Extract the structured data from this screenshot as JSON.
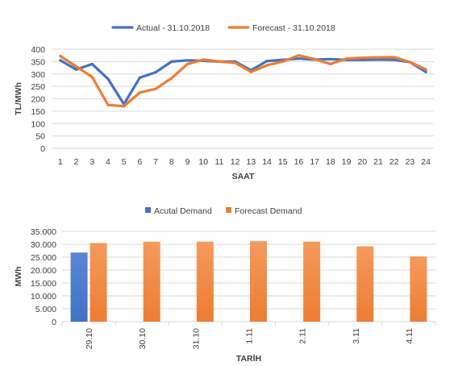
{
  "chart_data": [
    {
      "type": "line",
      "title": "",
      "xlabel": "SAAT",
      "ylabel": "TL/MWh",
      "ylim": [
        0,
        400
      ],
      "yticks": [
        "0",
        "50",
        "100",
        "150",
        "200",
        "250",
        "300",
        "350",
        "400"
      ],
      "ytick_values": [
        0,
        50,
        100,
        150,
        200,
        250,
        300,
        350,
        400
      ],
      "categories": [
        "1",
        "2",
        "3",
        "4",
        "5",
        "6",
        "7",
        "8",
        "9",
        "10",
        "11",
        "12",
        "13",
        "14",
        "15",
        "16",
        "17",
        "18",
        "19",
        "20",
        "21",
        "22",
        "23",
        "24"
      ],
      "grid": true,
      "legend": "top",
      "series": [
        {
          "name": "Actual - 31.10.2018",
          "color": "#4472C4",
          "values": [
            355,
            318,
            340,
            280,
            178,
            285,
            307,
            350,
            355,
            353,
            350,
            350,
            315,
            352,
            357,
            362,
            358,
            360,
            357,
            357,
            358,
            357,
            348,
            308
          ]
        },
        {
          "name": "Forecast - 31.10.2018",
          "color": "#ED7D31",
          "values": [
            372,
            330,
            288,
            175,
            170,
            225,
            240,
            283,
            340,
            358,
            350,
            345,
            308,
            335,
            350,
            375,
            360,
            340,
            362,
            365,
            367,
            368,
            348,
            318
          ]
        }
      ]
    },
    {
      "type": "bar",
      "title": "",
      "xlabel": "TARİH",
      "ylabel": "MWh",
      "ylim": [
        0,
        35000
      ],
      "yticks": [
        "0",
        "5.000",
        "10.000",
        "15.000",
        "20.000",
        "25.000",
        "30.000",
        "35.000"
      ],
      "ytick_values": [
        0,
        5000,
        10000,
        15000,
        20000,
        25000,
        30000,
        35000
      ],
      "categories": [
        "29.10",
        "30.10",
        "31.10",
        "1.11",
        "2.11",
        "3.11",
        "4.11"
      ],
      "grid": true,
      "legend": "top",
      "series": [
        {
          "name": "Acutal Demand",
          "color": "#4472C4",
          "values": [
            26800,
            null,
            null,
            null,
            null,
            null,
            null
          ]
        },
        {
          "name": "Forecast Demand",
          "color": "#ED7D31",
          "values": [
            30500,
            31000,
            31000,
            31200,
            31000,
            29200,
            25300
          ]
        }
      ]
    }
  ]
}
